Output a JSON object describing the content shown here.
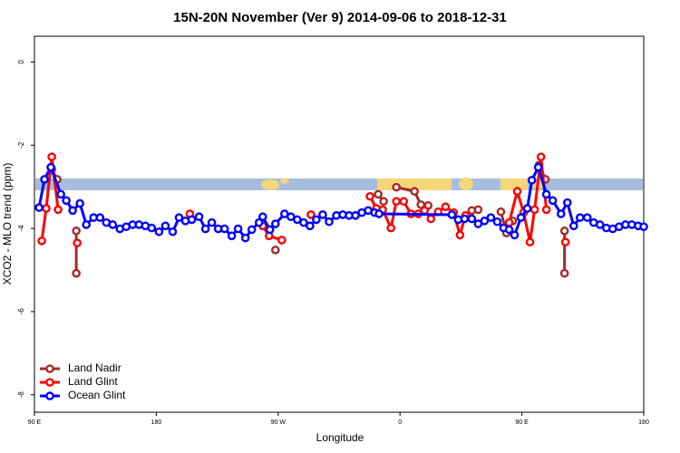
{
  "chart_data": {
    "type": "line",
    "title": "15N-20N November (Ver 9)   2014-09-06 to 2018-12-31",
    "xlabel": "Longitude",
    "ylabel": "XCO2 - MLO trend (ppm)",
    "xlim": [
      90,
      540
    ],
    "ylim": [
      -8.42,
      0.62
    ],
    "xticks": [
      {
        "value": 90,
        "label": "90 E"
      },
      180,
      {
        "value": 270,
        "label": "90 W"
      },
      {
        "value": 360,
        "label": "0"
      },
      {
        "value": 450,
        "label": "90 E"
      },
      {
        "value": 540,
        "label": "180"
      }
    ],
    "yticks": [
      0,
      -2,
      -4,
      -6,
      -8
    ],
    "legend": "bottom-left",
    "series": [
      {
        "name": "Land Nadir",
        "color": "#a52a2a",
        "x": [
          102.8,
          106.8,
          110,
          120.9,
          120.9,
          200,
          268.0,
          300,
          343.9,
          347.9,
          350,
          357.3,
          370.7,
          375.4,
          380.8,
          400,
          413.0,
          417.7,
          420,
          434.5,
          438.6,
          443.3,
          450,
          462.7,
          467.4,
          470,
          481.5,
          481.5
        ],
        "values": [
          -2.58,
          -2.82,
          null,
          -4.06,
          -5.08,
          null,
          -4.52,
          null,
          -3.18,
          -3.35,
          null,
          -3.01,
          -3.11,
          -3.43,
          -3.45,
          null,
          -3.57,
          -3.55,
          null,
          -3.6,
          -4.11,
          -3.82,
          null,
          -2.48,
          -2.82,
          null,
          -4.06,
          -5.08
        ]
      },
      {
        "name": "Land Glint",
        "color": "#ff0000",
        "x": [
          95.4,
          98.7,
          102.8,
          107.5,
          115,
          121.6,
          150,
          204.8,
          230,
          258.6,
          263.3,
          272.7,
          285,
          294.2,
          320,
          337.8,
          342.5,
          347.2,
          353.3,
          357.3,
          362.7,
          368.0,
          373.4,
          378.1,
          382.8,
          388.2,
          393.6,
          399.6,
          404.3,
          408.3,
          420,
          440.6,
          446.6,
          451.3,
          456.0,
          459.4,
          464.1,
          468.1,
          475,
          482.2
        ],
        "values": [
          -4.3,
          -3.52,
          -2.28,
          -3.55,
          null,
          -4.35,
          null,
          -3.65,
          null,
          -3.94,
          -4.18,
          -4.28,
          null,
          -3.67,
          null,
          -3.23,
          -3.52,
          -3.55,
          -3.99,
          -3.35,
          -3.35,
          -3.65,
          -3.65,
          -3.57,
          -3.77,
          -3.6,
          -3.48,
          -3.62,
          -4.16,
          -3.69,
          null,
          -3.86,
          -3.11,
          -3.62,
          -4.33,
          -3.55,
          -2.28,
          -3.55,
          null,
          -4.33
        ]
      },
      {
        "name": "Ocean Glint",
        "color": "#0000ff",
        "x": [
          93.4,
          97.4,
          102.1,
          109.5,
          113.5,
          118.2,
          123.6,
          128.3,
          133.7,
          138.4,
          143.1,
          147.8,
          153.1,
          157.8,
          162.5,
          167.2,
          171.9,
          176.6,
          182.0,
          186.7,
          192.1,
          196.8,
          201.5,
          206.2,
          211.6,
          216.3,
          221.0,
          225.7,
          230.4,
          235.7,
          240.4,
          245.8,
          250.5,
          255.9,
          258.6,
          263.9,
          268.0,
          274.7,
          279.4,
          284.1,
          288.8,
          293.5,
          298.2,
          302.9,
          307.6,
          313.0,
          317.7,
          322.4,
          327.1,
          331.8,
          336.5,
          341.2,
          344.5,
          398.3,
          403.0,
          407.7,
          413.0,
          417.7,
          422.4,
          427.1,
          431.8,
          436.5,
          440.6,
          444.6,
          449.3,
          454.0,
          457.4,
          462.1,
          468.1,
          472.8,
          478.9,
          483.6,
          488.3,
          493.0,
          498.3,
          503.0,
          507.7,
          512.4,
          517.1,
          521.8,
          526.5,
          531.2,
          535.9,
          540.0
        ],
        "values": [
          -3.5,
          -2.82,
          -2.53,
          -3.18,
          -3.33,
          -3.57,
          -3.4,
          -3.91,
          -3.74,
          -3.74,
          -3.86,
          -3.91,
          -4.01,
          -3.96,
          -3.91,
          -3.91,
          -3.94,
          -3.99,
          -4.08,
          -3.94,
          -4.08,
          -3.74,
          -3.82,
          -3.79,
          -3.72,
          -4.01,
          -3.86,
          -4.01,
          -4.01,
          -4.18,
          -4.01,
          -4.23,
          -4.03,
          -3.86,
          -3.72,
          -4.03,
          -3.89,
          -3.65,
          -3.72,
          -3.79,
          -3.86,
          -3.94,
          -3.79,
          -3.67,
          -3.84,
          -3.69,
          -3.67,
          -3.69,
          -3.69,
          -3.62,
          -3.57,
          -3.62,
          -3.65,
          -3.67,
          -3.79,
          -3.77,
          -3.77,
          -3.89,
          -3.82,
          -3.74,
          -3.84,
          -3.99,
          -4.03,
          -4.16,
          -3.74,
          -3.52,
          -2.84,
          -2.53,
          -3.18,
          -3.33,
          -3.65,
          -3.38,
          -3.94,
          -3.74,
          -3.74,
          -3.86,
          -3.91,
          -3.99,
          -4.01,
          -3.96,
          -3.91,
          -3.91,
          -3.94,
          -3.96
        ]
      }
    ]
  }
}
